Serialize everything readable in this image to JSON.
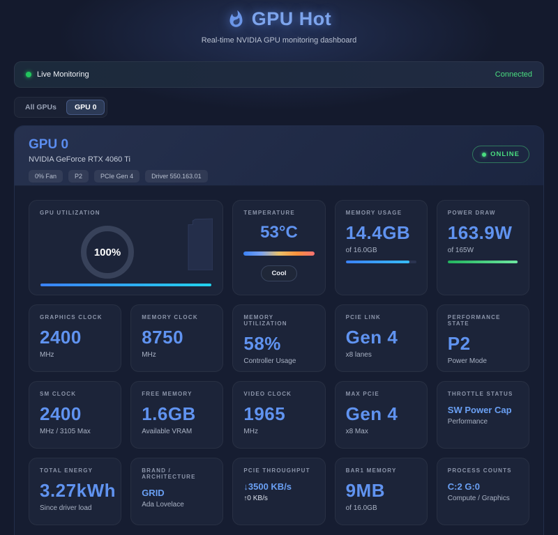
{
  "header": {
    "title": "GPU Hot",
    "subtitle": "Real-time NVIDIA GPU monitoring dashboard"
  },
  "status_bar": {
    "live_label": "Live Monitoring",
    "connection_status": "Connected"
  },
  "tabs": [
    {
      "label": "All GPUs",
      "active": false
    },
    {
      "label": "GPU 0",
      "active": true
    }
  ],
  "gpu_card": {
    "title": "GPU 0",
    "name": "NVIDIA GeForce RTX 4060 Ti",
    "badges": [
      "0% Fan",
      "P2",
      "PCIe Gen 4",
      "Driver 550.163.01"
    ],
    "online_label": "ONLINE"
  },
  "colors": {
    "accent_blue": "#6093f0",
    "status_green": "#4ade80",
    "live_dot": "#22c55e"
  },
  "cards": [
    {
      "id": "gpu-utilization",
      "type": "gauge",
      "span": 2,
      "label": "GPU UTILIZATION",
      "value": "100%",
      "bar": {
        "percent": 100,
        "gradient": [
          "#3b82f6",
          "#22d3ee"
        ]
      }
    },
    {
      "id": "temperature",
      "type": "temp",
      "label": "TEMPERATURE",
      "value": "53°C",
      "badge": "Cool",
      "gradient": [
        "#3b82f6",
        "#7aa2f0",
        "#e8c06a",
        "#fb923c",
        "#f87171"
      ]
    },
    {
      "id": "memory-usage",
      "type": "stat",
      "label": "MEMORY USAGE",
      "value": "14.4GB",
      "sub": "of 16.0GB",
      "bar": {
        "percent": 90,
        "gradient": [
          "#3b82f6",
          "#38bdf8"
        ]
      }
    },
    {
      "id": "power-draw",
      "type": "stat",
      "label": "POWER DRAW",
      "value": "163.9W",
      "sub": "of 165W",
      "bar": {
        "percent": 99,
        "gradient": [
          "#22b45e",
          "#6ee7a0"
        ]
      }
    },
    {
      "id": "graphics-clock",
      "type": "stat",
      "label": "GRAPHICS CLOCK",
      "value": "2400",
      "sub": "MHz"
    },
    {
      "id": "memory-clock",
      "type": "stat",
      "label": "MEMORY CLOCK",
      "value": "8750",
      "sub": "MHz"
    },
    {
      "id": "memory-utilization",
      "type": "stat",
      "label": "MEMORY UTILIZATION",
      "value": "58%",
      "sub": "Controller Usage",
      "bar": {
        "percent": 58,
        "gradient": [
          "#3b82f6",
          "#38bdf8"
        ]
      }
    },
    {
      "id": "pcie-link",
      "type": "stat",
      "label": "PCIE LINK",
      "value": "Gen 4",
      "sub": "x8 lanes"
    },
    {
      "id": "performance-state",
      "type": "stat",
      "label": "PERFORMANCE STATE",
      "value": "P2",
      "sub": "Power Mode"
    },
    {
      "id": "sm-clock",
      "type": "stat",
      "label": "SM CLOCK",
      "value": "2400",
      "sub": "MHz / 3105 Max"
    },
    {
      "id": "free-memory",
      "type": "stat",
      "label": "FREE MEMORY",
      "value": "1.6GB",
      "sub": "Available VRAM"
    },
    {
      "id": "video-clock",
      "type": "stat",
      "label": "VIDEO CLOCK",
      "value": "1965",
      "sub": "MHz"
    },
    {
      "id": "max-pcie",
      "type": "stat",
      "label": "MAX PCIE",
      "value": "Gen 4",
      "sub": "x8 Max"
    },
    {
      "id": "throttle-status",
      "type": "text",
      "label": "THROTTLE STATUS",
      "value": "SW Power Cap",
      "sub": "Performance"
    },
    {
      "id": "total-energy",
      "type": "stat",
      "label": "TOTAL ENERGY",
      "value": "3.27kWh",
      "sub": "Since driver load"
    },
    {
      "id": "brand-architecture",
      "type": "text",
      "label": "BRAND / ARCHITECTURE",
      "value": "GRID",
      "sub": "Ada Lovelace"
    },
    {
      "id": "pcie-throughput",
      "type": "text",
      "label": "PCIE THROUGHPUT",
      "value": "↓3500 KB/s",
      "sub": "↑0 KB/s",
      "sub_light": true
    },
    {
      "id": "bar1-memory",
      "type": "stat",
      "label": "BAR1 MEMORY",
      "value": "9MB",
      "sub": "of 16.0GB"
    },
    {
      "id": "process-counts",
      "type": "text",
      "label": "PROCESS COUNTS",
      "value": "C:2 G:0",
      "sub": "Compute / Graphics"
    }
  ]
}
